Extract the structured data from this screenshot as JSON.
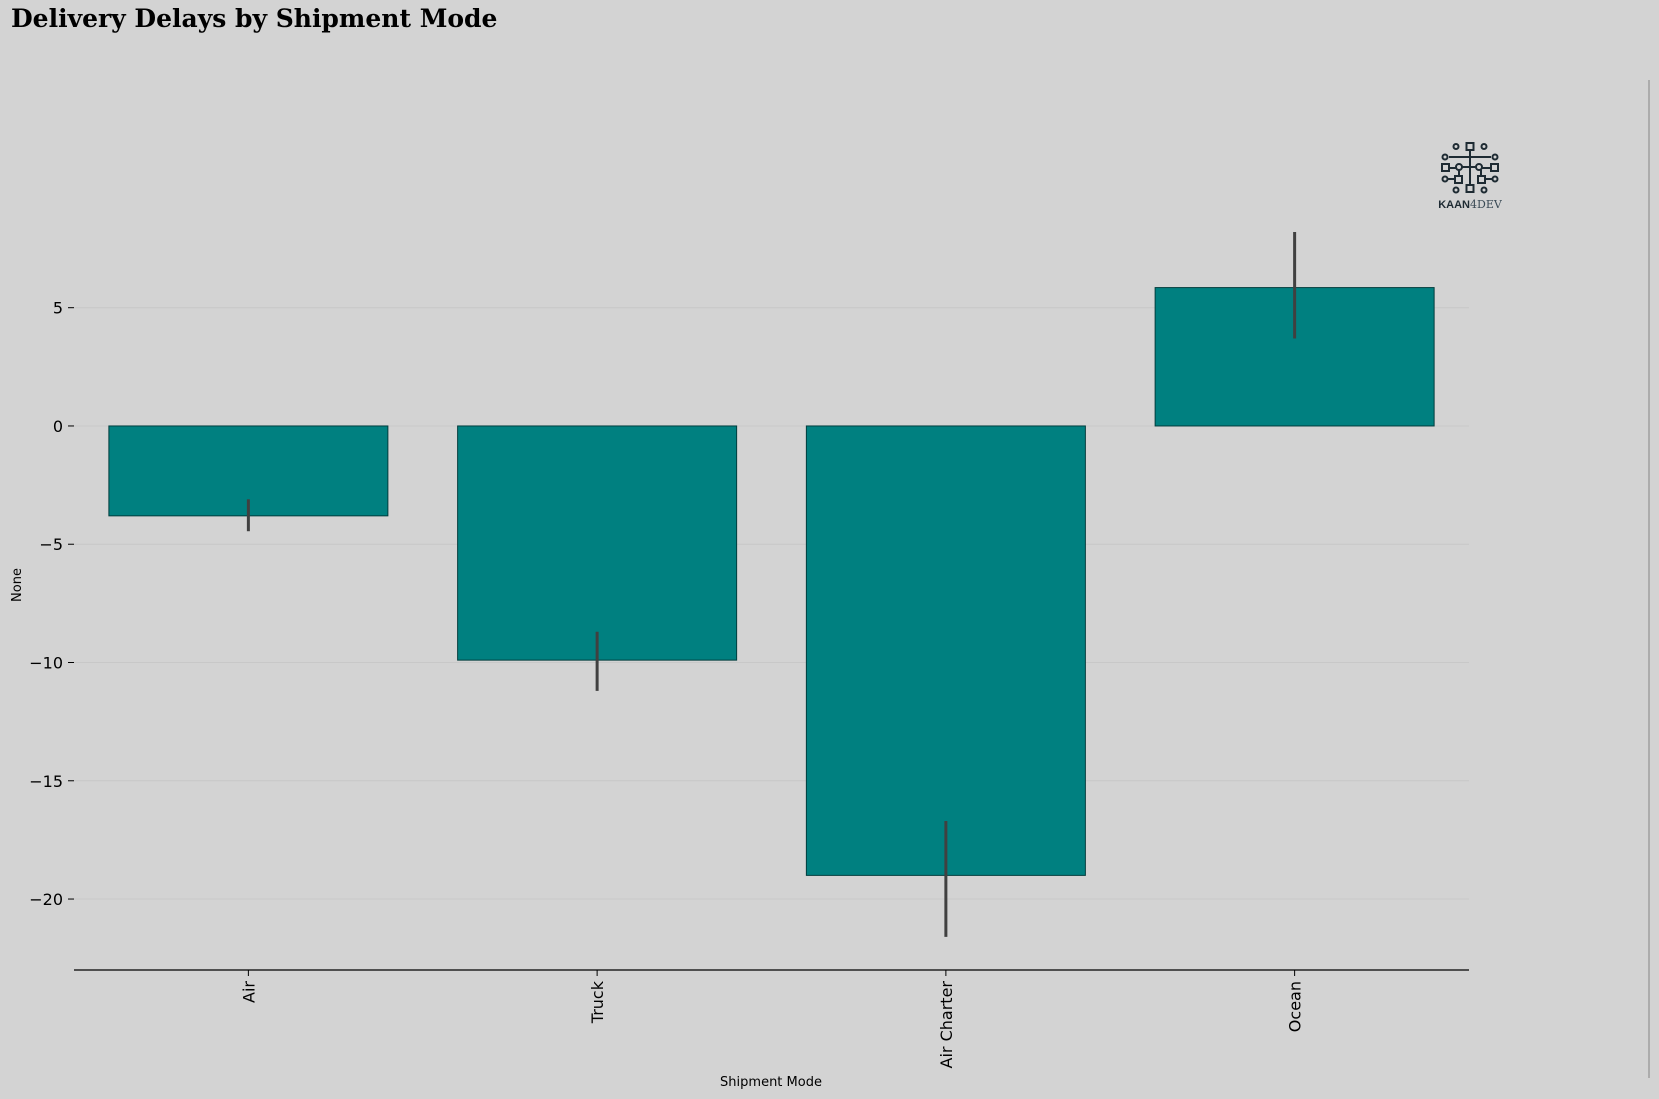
{
  "colors": {
    "background": "#d3d3d3",
    "bar": "#008080",
    "bar_edge": "#003d3d",
    "error_bar": "#404040",
    "grid": "#c8c8c8",
    "logo": "#1e2b33"
  },
  "logo": {
    "text_bold": "KAAN",
    "text_light": "4DEV"
  },
  "chart_data": {
    "type": "bar",
    "title": "Delivery Delays by Shipment Mode",
    "xlabel": "Shipment Mode",
    "ylabel": "None",
    "categories": [
      "Air",
      "Truck",
      "Air Charter",
      "Ocean"
    ],
    "values": [
      -3.8,
      -9.9,
      -19.0,
      5.85
    ],
    "error_low": [
      -4.45,
      -11.2,
      -21.6,
      3.7
    ],
    "error_high": [
      -3.1,
      -8.7,
      -16.7,
      8.2
    ],
    "ylim": [
      -23,
      8.2
    ],
    "yticks": [
      5,
      0,
      -5,
      -10,
      -15,
      -20
    ],
    "ytick_labels": [
      "5",
      "0",
      "−5",
      "−10",
      "−15",
      "−20"
    ],
    "grid": "horizontal",
    "legend": "none"
  }
}
